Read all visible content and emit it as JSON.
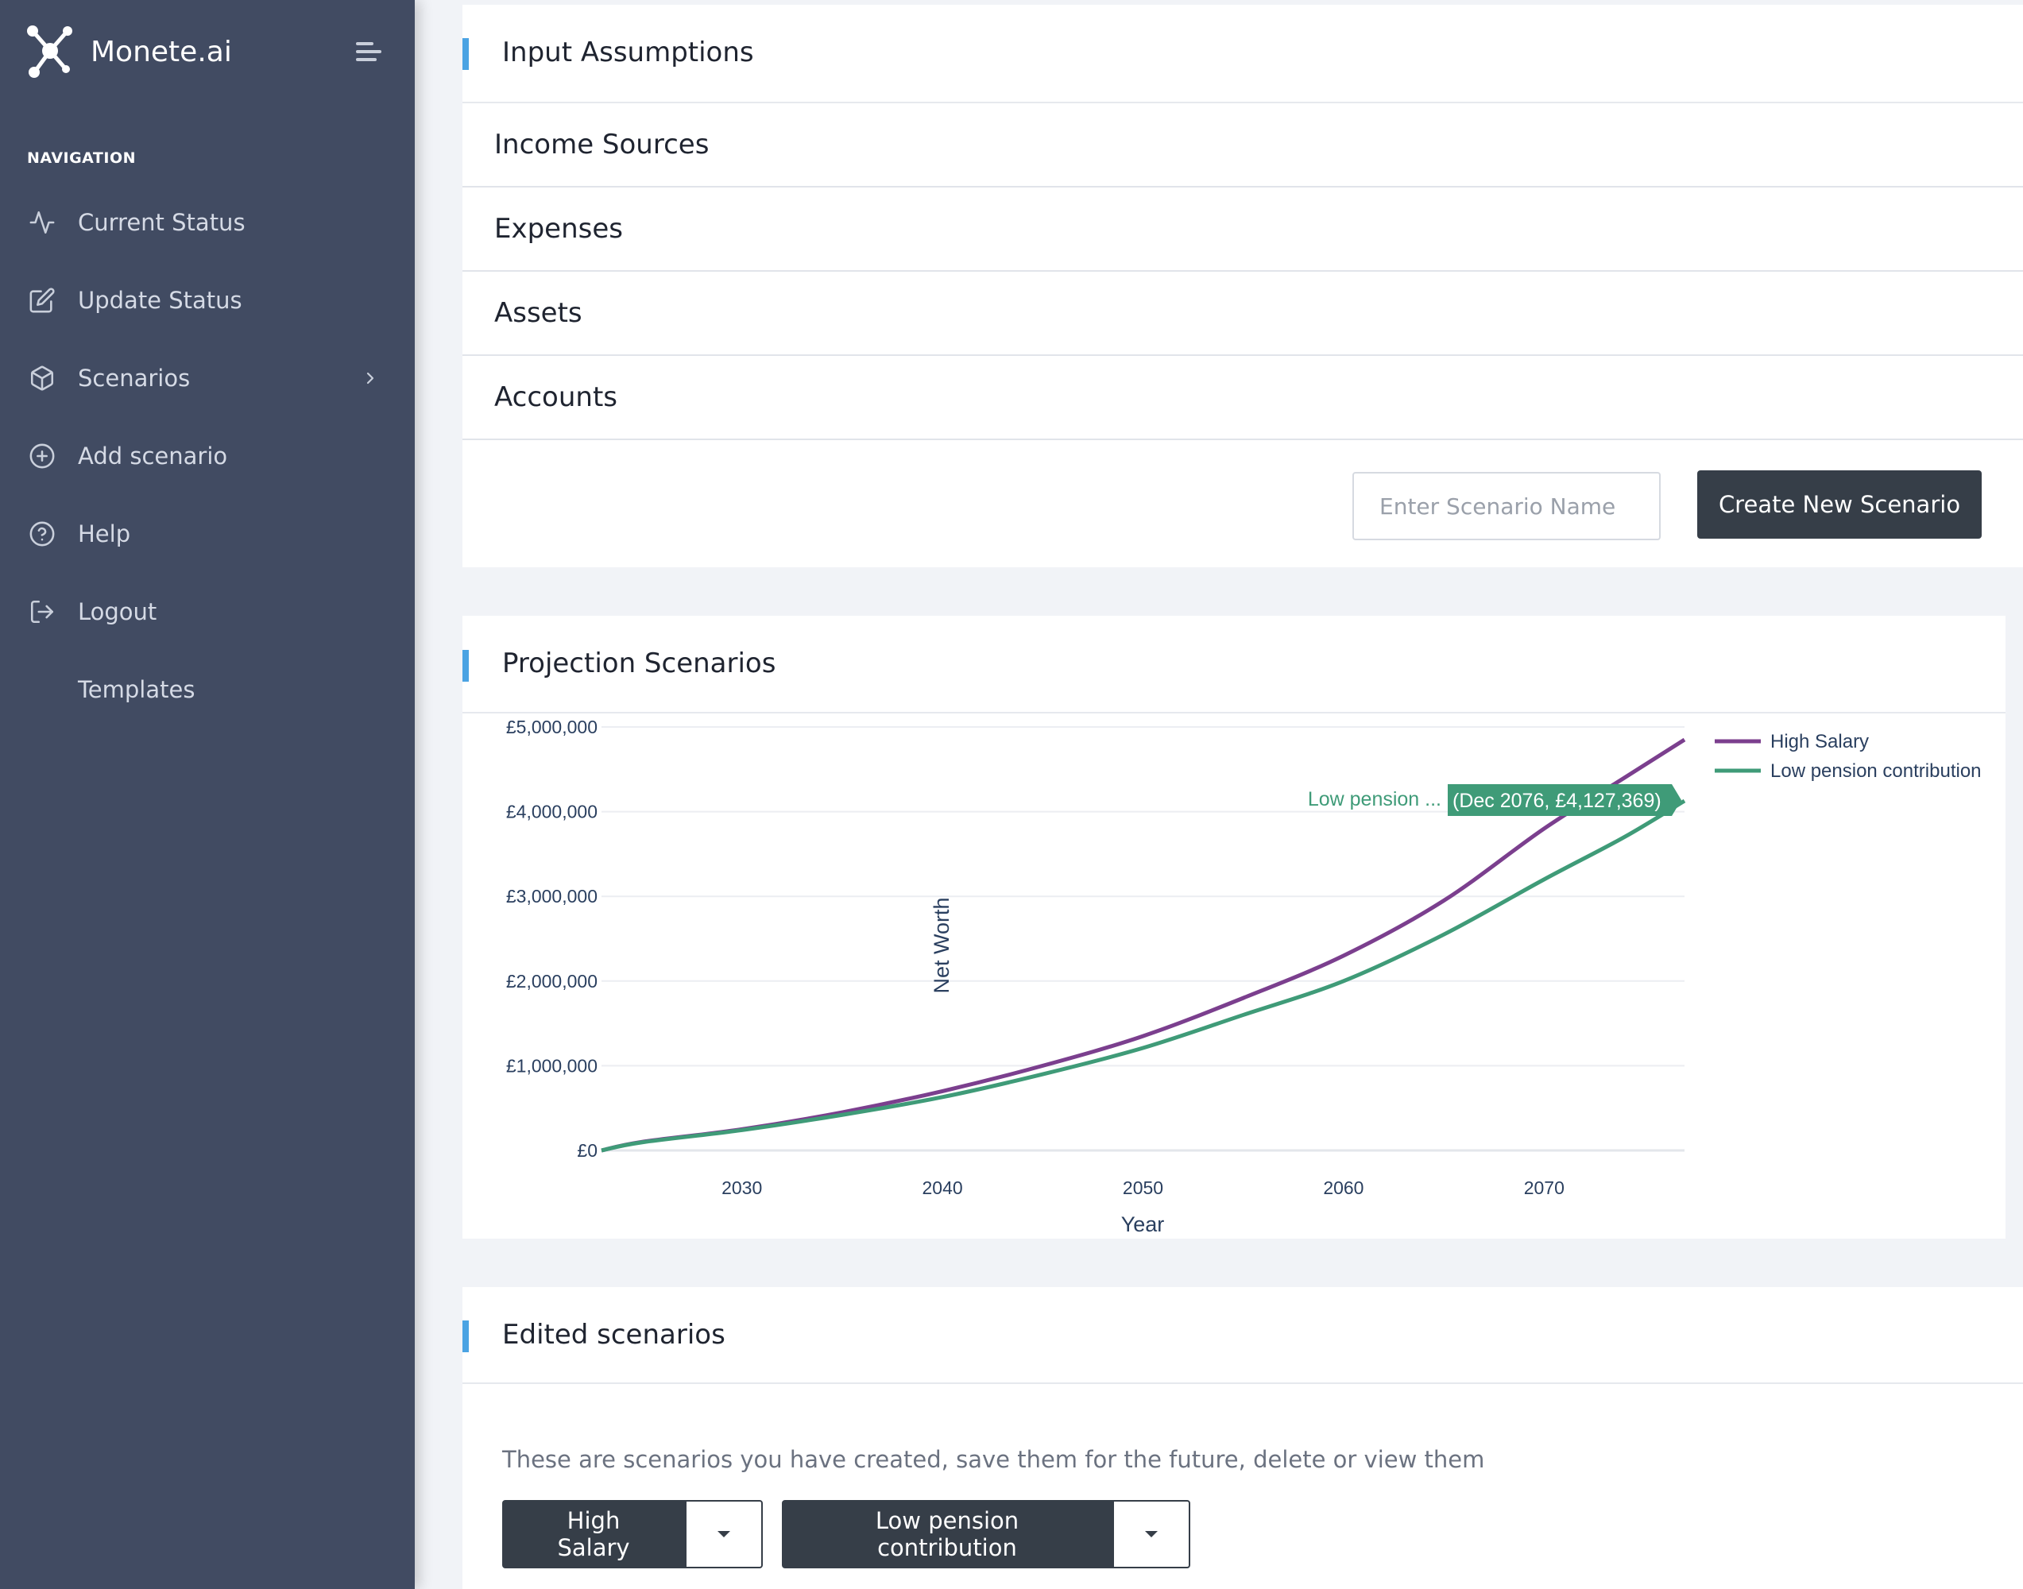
{
  "app": {
    "name": "Monete.ai"
  },
  "sidebar": {
    "heading": "NAVIGATION",
    "items": [
      {
        "label": "Current Status",
        "icon": "activity-icon"
      },
      {
        "label": "Update Status",
        "icon": "edit-icon"
      },
      {
        "label": "Scenarios",
        "icon": "box-icon",
        "has_chevron": true
      },
      {
        "label": "Add scenario",
        "icon": "plus-circle-icon"
      },
      {
        "label": "Help",
        "icon": "help-circle-icon"
      },
      {
        "label": "Logout",
        "icon": "logout-icon"
      },
      {
        "label": "Templates",
        "icon": ""
      }
    ]
  },
  "input_assumptions": {
    "title": "Input Assumptions",
    "sections": [
      "Income Sources",
      "Expenses",
      "Assets",
      "Accounts"
    ],
    "scenario_name_placeholder": "Enter Scenario Name",
    "create_button": "Create New Scenario"
  },
  "projection": {
    "title": "Projection Scenarios",
    "hover": {
      "series_label": "Low pension ...",
      "value_label": "(Dec 2076, £4,127,369)"
    }
  },
  "chart_data": {
    "type": "line",
    "xlabel": "Year",
    "ylabel": "Net Worth",
    "xlim": [
      2023,
      2077
    ],
    "ylim": [
      0,
      5000000
    ],
    "xticks": [
      2030,
      2040,
      2050,
      2060,
      2070
    ],
    "yticks": [
      "£0",
      "£1,000,000",
      "£2,000,000",
      "£3,000,000",
      "£4,000,000",
      "£5,000,000"
    ],
    "grid": true,
    "legend_position": "top-right",
    "x": [
      2023,
      2025,
      2030,
      2035,
      2040,
      2045,
      2050,
      2055,
      2060,
      2065,
      2070,
      2074,
      2077
    ],
    "series": [
      {
        "name": "High Salary",
        "color": "#7b3f8e",
        "values": [
          0,
          100000,
          250000,
          450000,
          700000,
          1000000,
          1350000,
          1800000,
          2300000,
          2950000,
          3800000,
          4400000,
          4850000
        ]
      },
      {
        "name": "Low pension contribution",
        "color": "#3f9b78",
        "values": [
          0,
          95000,
          240000,
          420000,
          630000,
          900000,
          1210000,
          1600000,
          2000000,
          2550000,
          3200000,
          3700000,
          4127369
        ]
      }
    ]
  },
  "edited": {
    "title": "Edited scenarios",
    "description": "These are scenarios you have created, save them for the future, delete or view them",
    "buttons": [
      "High Salary",
      "Low pension contribution"
    ]
  }
}
